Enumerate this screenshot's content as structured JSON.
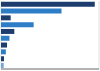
{
  "chart_data": {
    "type": "bar",
    "orientation": "horizontal",
    "categories": [
      null,
      null,
      null,
      null,
      null,
      null,
      null,
      null,
      null,
      null
    ],
    "values": [
      155000,
      100000,
      16000,
      54000,
      22000,
      14000,
      10000,
      8000,
      5000,
      4500
    ],
    "colors": [
      "#1c3d6e",
      "#2e7ec7",
      "#1c3d6e",
      "#2e7ec7",
      "#1c3d6e",
      "#2e7ec7",
      "#1c3d6e",
      "#2e7ec7",
      "#1c3d6e",
      "#6fa8d8"
    ],
    "xlim": [
      0,
      162000
    ],
    "xticks": [
      40000,
      80000,
      120000,
      160000
    ],
    "grid": true,
    "tick_labels": false
  }
}
